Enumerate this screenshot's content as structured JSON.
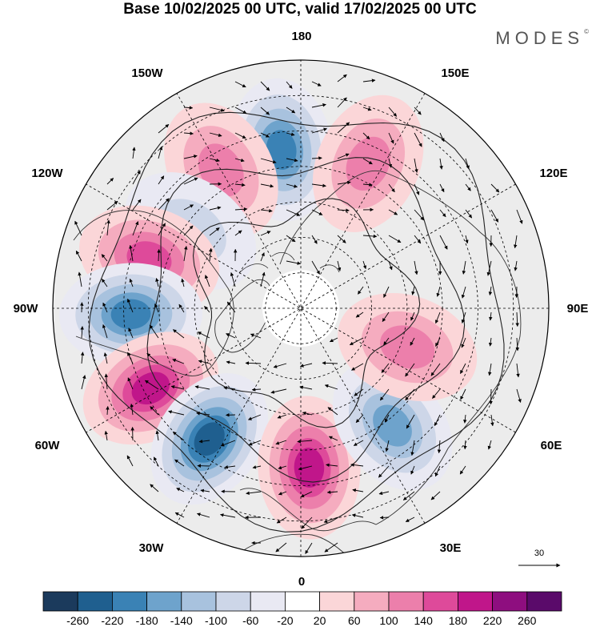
{
  "title": "Base 10/02/2025 00 UTC, valid 17/02/2025 00 UTC",
  "brand": "MODES",
  "brand_mark": "©",
  "longitude_labels": {
    "top": "180",
    "bottom": "0",
    "left": "90W",
    "right": "90E",
    "upper_left": "150W",
    "upper_right": "150E",
    "mid_upper_left": "120W",
    "mid_upper_right": "120E",
    "mid_lower_left": "60W",
    "mid_lower_right": "60E",
    "lower_left": "30W",
    "lower_right": "30E"
  },
  "reference_vector": {
    "label": "30"
  },
  "colorbar": {
    "levels": [
      "-260",
      "-220",
      "-180",
      "-140",
      "-100",
      "-60",
      "-20",
      "20",
      "60",
      "100",
      "140",
      "180",
      "220",
      "260"
    ],
    "colors": [
      "#1b3a5c",
      "#1f5f8f",
      "#3a82b5",
      "#6ea3cc",
      "#a8c2de",
      "#cdd6e8",
      "#e9e9f3",
      "#ffffff",
      "#fbd6d8",
      "#f5acbf",
      "#ec7fab",
      "#de4a9a",
      "#c0168a",
      "#8e0e7f",
      "#5a0a6a"
    ]
  },
  "anomaly_centers": [
    {
      "lon": -173,
      "lat": 45,
      "value": -200
    },
    {
      "lon": -150,
      "lat": 45,
      "value": 130
    },
    {
      "lon": 155,
      "lat": 45,
      "value": 130
    },
    {
      "lon": -125,
      "lat": 52,
      "value": -110
    },
    {
      "lon": -108,
      "lat": 45,
      "value": 180
    },
    {
      "lon": -88,
      "lat": 42,
      "value": -220
    },
    {
      "lon": -62,
      "lat": 42,
      "value": 230
    },
    {
      "lon": -35,
      "lat": 45,
      "value": -240
    },
    {
      "lon": 3,
      "lat": 45,
      "value": 200
    },
    {
      "lon": 38,
      "lat": 48,
      "value": -160
    },
    {
      "lon": 70,
      "lat": 58,
      "value": 120
    }
  ]
}
